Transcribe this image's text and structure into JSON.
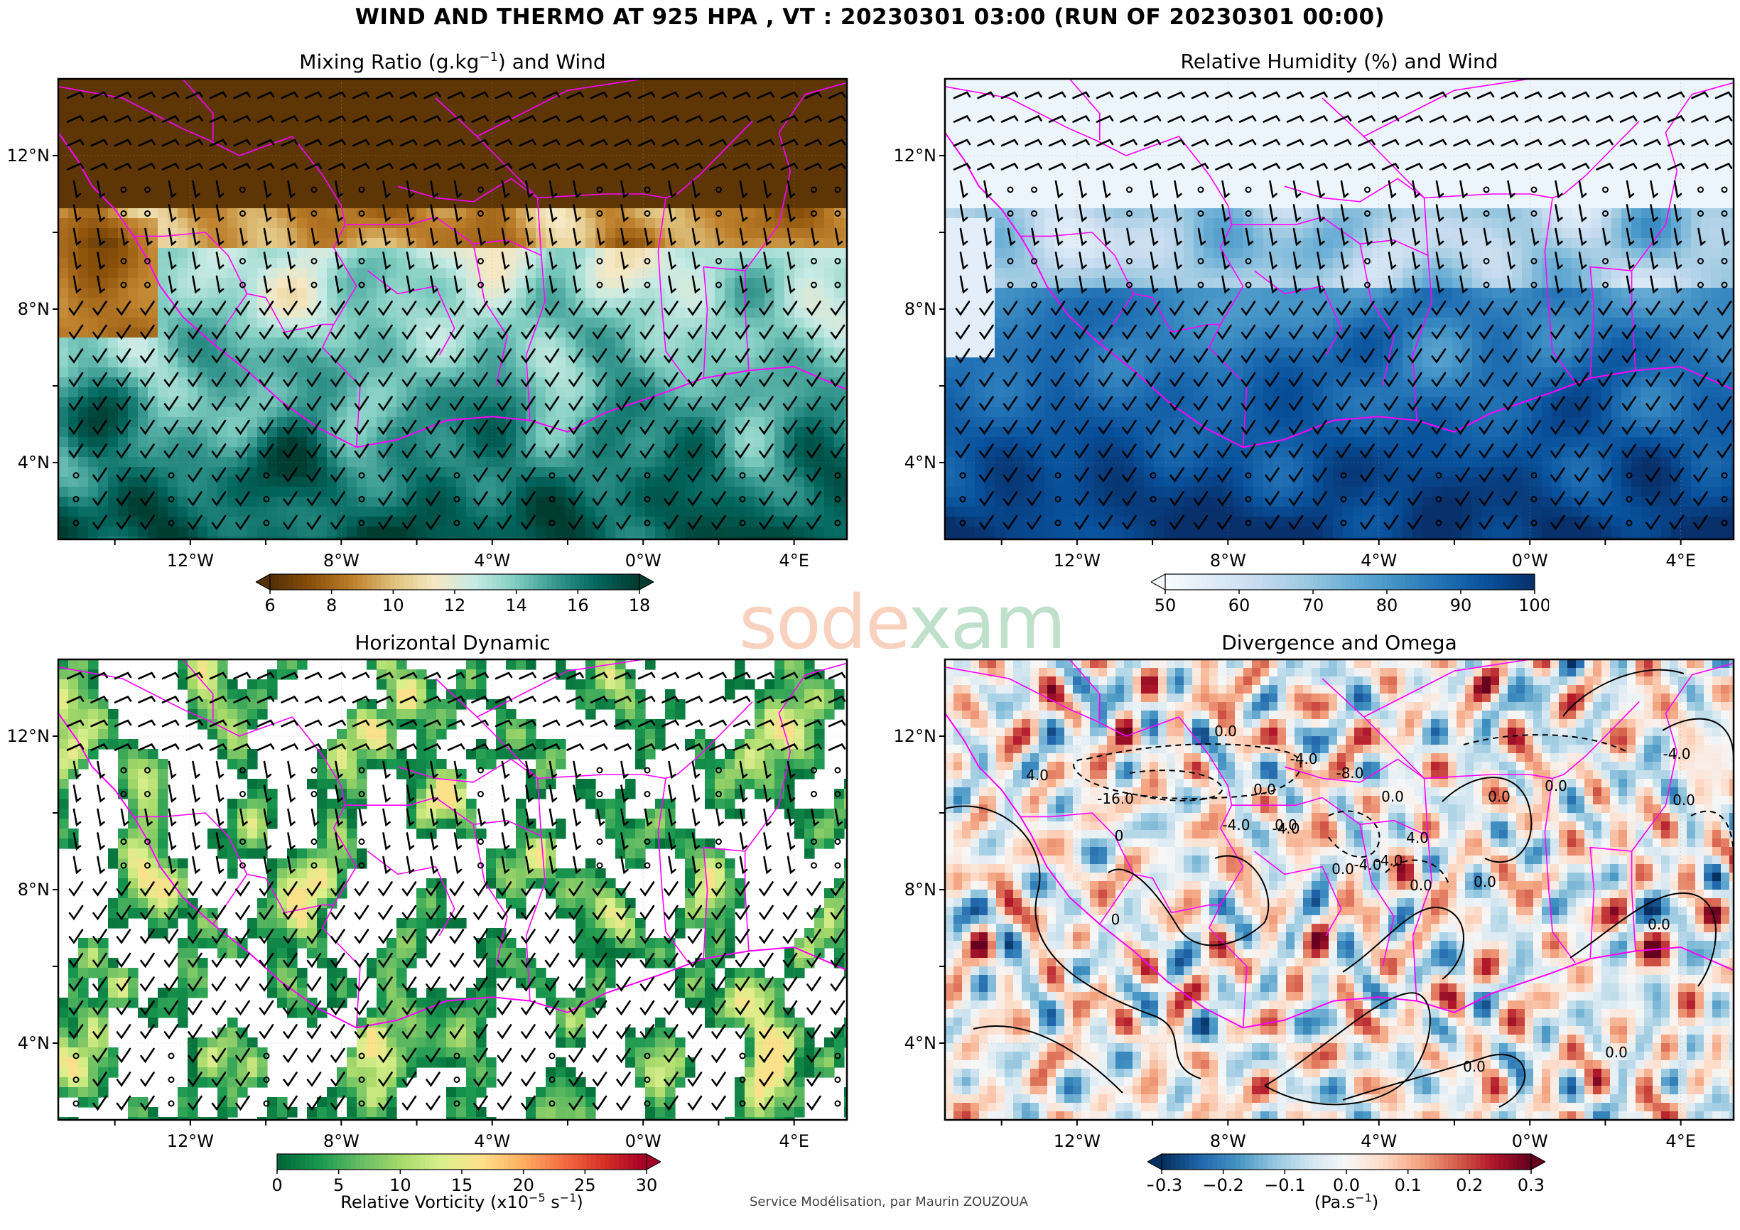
{
  "title": "WIND AND THERMO AT 925 HPA , VT : 20230301 03:00 (RUN OF 20230301 00:00)",
  "axes": {
    "lon_ticks": [
      "12°W",
      "8°W",
      "4°W",
      "0°W",
      "4°E"
    ],
    "lat_ticks": [
      "12°N",
      "8°N",
      "4°N"
    ]
  },
  "panels": [
    {
      "id": "mixing-ratio",
      "title": "Mixing Ratio (g.kg",
      "title_sup": "−1",
      "title_suffix": ") and Wind",
      "colormap": [
        "#543005",
        "#8c510a",
        "#bf812d",
        "#dfc27d",
        "#f6e8c3",
        "#c7eae5",
        "#80cdc1",
        "#35978f",
        "#01665e",
        "#003c30"
      ],
      "colorbar": {
        "ticks": [
          "6",
          "8",
          "10",
          "12",
          "14",
          "16",
          "18"
        ],
        "label": "",
        "extend": "both"
      }
    },
    {
      "id": "relative-humidity",
      "title": "Relative Humidity (%) and Wind",
      "title_sup": "",
      "title_suffix": "",
      "colormap": [
        "#f7fbff",
        "#deebf7",
        "#c6dbef",
        "#9ecae1",
        "#6baed6",
        "#4292c6",
        "#2171b5",
        "#08519c",
        "#08306b"
      ],
      "colorbar": {
        "ticks": [
          "50",
          "60",
          "70",
          "80",
          "90",
          "100"
        ],
        "label": "",
        "extend": "min"
      }
    },
    {
      "id": "horizontal-dynamic",
      "title": "Horizontal Dynamic",
      "title_sup": "",
      "title_suffix": "",
      "colormap": [
        "#006837",
        "#1a9850",
        "#66bd63",
        "#a6d96a",
        "#d9ef8b",
        "#fee08b",
        "#fdae61",
        "#f46d43",
        "#d73027",
        "#a50026"
      ],
      "colorbar": {
        "ticks": [
          "0",
          "5",
          "10",
          "15",
          "20",
          "25",
          "30"
        ],
        "label": "Relative Vorticity (x10",
        "label_sup": "−5",
        "label_suffix": " s",
        "label_sup2": "−1",
        "label_end": ")",
        "extend": "max"
      }
    },
    {
      "id": "divergence-omega",
      "title": "Divergence and Omega",
      "title_sup": "",
      "title_suffix": "",
      "colormap": [
        "#053061",
        "#2166ac",
        "#4393c3",
        "#92c5de",
        "#d1e5f0",
        "#f7f7f7",
        "#fddbc7",
        "#f4a582",
        "#d6604d",
        "#b2182b",
        "#67001f"
      ],
      "colorbar": {
        "ticks": [
          "−0.3",
          "−0.2",
          "−0.1",
          "0.0",
          "0.1",
          "0.2",
          "0.3"
        ],
        "label": "(Pa.s",
        "label_sup": "−1",
        "label_suffix": ")",
        "extend": "both"
      },
      "contour_labels": [
        "0.0",
        "-4.0",
        "-8.0",
        "-16.0",
        "0.0",
        "-4.0",
        "4.0",
        "0",
        "0.0",
        "-4.0",
        "0.0",
        "0.0",
        "-4.0",
        "4.0",
        "0.0",
        "0.0",
        "-4.0",
        "0",
        "0.0",
        "0.0",
        "0.0",
        "-4.0",
        "0.0",
        "0.0",
        "0.0"
      ]
    }
  ],
  "watermark": {
    "part1": "sode",
    "part2": "xam"
  },
  "credit": "Service Modélisation, par Maurin ZOUZOUA"
}
